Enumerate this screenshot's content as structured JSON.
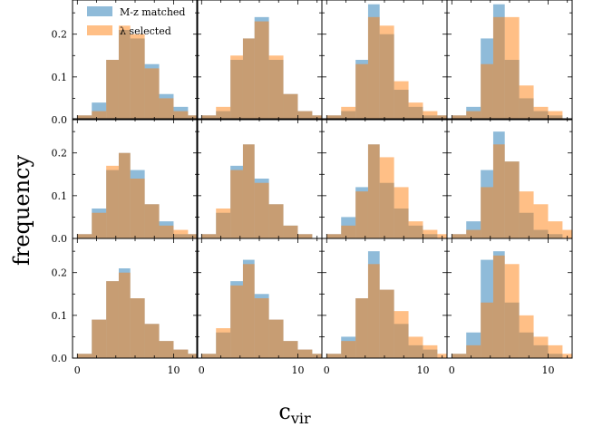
{
  "chart_data": {
    "type": "bar",
    "layout": {
      "rows": 3,
      "cols": 4,
      "shared_axes": true
    },
    "xlabel": "c",
    "xlabel_sub": "vir",
    "ylabel": "frequency",
    "xlim": [
      -0.5,
      12.5
    ],
    "ylim": [
      0,
      0.28
    ],
    "xticks": [
      0,
      10
    ],
    "yticks": [
      0.0,
      0.1,
      0.2
    ],
    "ytick_labels": [
      "0.0",
      "0.1",
      "0.2"
    ],
    "xtick_labels": [
      "0",
      "10"
    ],
    "bin_edges": [
      0,
      1.5,
      3,
      4.3,
      5.5,
      7,
      8.5,
      10,
      11.5,
      13
    ],
    "legend": {
      "placement": "top-left of first panel",
      "entries": [
        {
          "label": "M-z matched",
          "color": "#1f77b4"
        },
        {
          "label": "λ selected",
          "color": "#ff7f0e"
        }
      ]
    },
    "colors": {
      "mz": "#1f77b4",
      "lam": "#ff7f0e",
      "opacity": 0.5
    },
    "series": [
      {
        "name": "M-z matched",
        "key": "mz"
      },
      {
        "name": "λ selected",
        "key": "lam"
      }
    ],
    "panels": [
      {
        "mz": [
          0.01,
          0.04,
          0.14,
          0.21,
          0.19,
          0.13,
          0.06,
          0.03,
          0.01
        ],
        "lam": [
          0.01,
          0.02,
          0.14,
          0.22,
          0.2,
          0.12,
          0.05,
          0.02,
          0.01
        ]
      },
      {
        "mz": [
          0.01,
          0.02,
          0.14,
          0.19,
          0.24,
          0.14,
          0.06,
          0.02,
          0.01
        ],
        "lam": [
          0.01,
          0.03,
          0.15,
          0.19,
          0.23,
          0.15,
          0.06,
          0.02,
          0.01
        ]
      },
      {
        "mz": [
          0.01,
          0.02,
          0.14,
          0.27,
          0.2,
          0.07,
          0.03,
          0.01,
          0.01
        ],
        "lam": [
          0.01,
          0.03,
          0.13,
          0.24,
          0.22,
          0.09,
          0.04,
          0.02,
          0.01
        ]
      },
      {
        "mz": [
          0.01,
          0.03,
          0.19,
          0.27,
          0.14,
          0.05,
          0.02,
          0.01,
          0.0
        ],
        "lam": [
          0.01,
          0.02,
          0.13,
          0.24,
          0.24,
          0.08,
          0.03,
          0.02,
          0.0
        ]
      },
      {
        "mz": [
          0.01,
          0.07,
          0.16,
          0.2,
          0.16,
          0.08,
          0.04,
          0.01,
          0.01
        ],
        "lam": [
          0.01,
          0.06,
          0.17,
          0.2,
          0.14,
          0.08,
          0.03,
          0.02,
          0.01
        ]
      },
      {
        "mz": [
          0.01,
          0.06,
          0.17,
          0.22,
          0.14,
          0.08,
          0.03,
          0.01,
          0.0
        ],
        "lam": [
          0.01,
          0.07,
          0.16,
          0.22,
          0.13,
          0.08,
          0.03,
          0.01,
          0.0
        ]
      },
      {
        "mz": [
          0.01,
          0.05,
          0.12,
          0.22,
          0.13,
          0.07,
          0.03,
          0.01,
          0.0
        ],
        "lam": [
          0.01,
          0.03,
          0.11,
          0.22,
          0.19,
          0.12,
          0.04,
          0.02,
          0.01
        ]
      },
      {
        "mz": [
          0.01,
          0.04,
          0.16,
          0.25,
          0.18,
          0.06,
          0.02,
          0.01,
          0.0
        ],
        "lam": [
          0.01,
          0.02,
          0.12,
          0.22,
          0.18,
          0.11,
          0.08,
          0.04,
          0.02
        ]
      },
      {
        "mz": [
          0.01,
          0.09,
          0.18,
          0.21,
          0.14,
          0.08,
          0.04,
          0.02,
          0.01
        ],
        "lam": [
          0.01,
          0.09,
          0.18,
          0.2,
          0.14,
          0.08,
          0.04,
          0.02,
          0.01
        ]
      },
      {
        "mz": [
          0.01,
          0.06,
          0.18,
          0.23,
          0.15,
          0.09,
          0.04,
          0.02,
          0.01
        ],
        "lam": [
          0.01,
          0.07,
          0.17,
          0.22,
          0.14,
          0.09,
          0.04,
          0.02,
          0.01
        ]
      },
      {
        "mz": [
          0.01,
          0.05,
          0.14,
          0.25,
          0.16,
          0.08,
          0.03,
          0.02,
          0.0
        ],
        "lam": [
          0.01,
          0.04,
          0.14,
          0.22,
          0.16,
          0.11,
          0.05,
          0.03,
          0.01
        ]
      },
      {
        "mz": [
          0.01,
          0.06,
          0.23,
          0.25,
          0.13,
          0.06,
          0.03,
          0.01,
          0.0
        ],
        "lam": [
          0.01,
          0.03,
          0.13,
          0.24,
          0.22,
          0.1,
          0.05,
          0.03,
          0.01
        ]
      }
    ]
  }
}
